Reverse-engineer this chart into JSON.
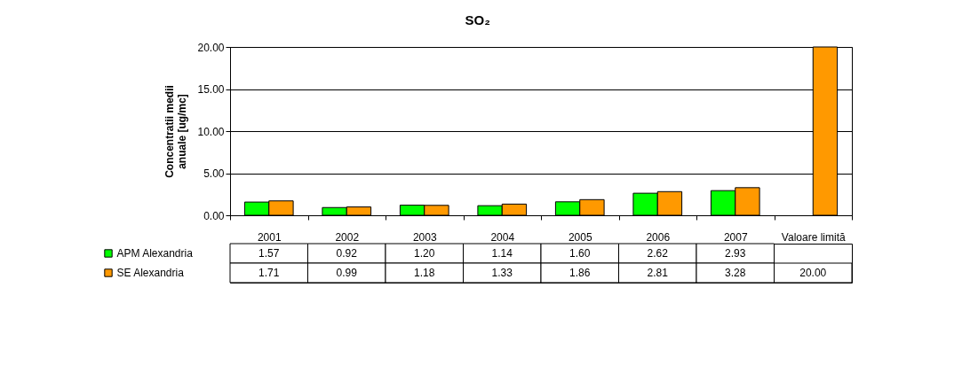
{
  "chart_data": {
    "type": "bar",
    "title": "SO₂",
    "ylabel": "Concentratii medii anuale [ug/mc]",
    "categories": [
      "2001",
      "2002",
      "2003",
      "2004",
      "2005",
      "2006",
      "2007",
      "Valoare limită"
    ],
    "series": [
      {
        "name": "APM Alexandria",
        "color": "#00ff00",
        "values": [
          1.57,
          0.92,
          1.2,
          1.14,
          1.6,
          2.62,
          2.93,
          null
        ],
        "value_labels": [
          "1.57",
          "0.92",
          "1.20",
          "1.14",
          "1.60",
          "2.62",
          "2.93",
          null
        ]
      },
      {
        "name": "SE Alexandria",
        "color": "#ff9900",
        "values": [
          1.71,
          0.99,
          1.18,
          1.33,
          1.86,
          2.81,
          3.28,
          20.0
        ],
        "value_labels": [
          "1.71",
          "0.99",
          "1.18",
          "1.33",
          "1.86",
          "2.81",
          "3.28",
          "20.00"
        ]
      }
    ],
    "ylim": [
      0,
      20
    ],
    "yticks": [
      {
        "value": 0,
        "label": "0.00"
      },
      {
        "value": 5,
        "label": "5.00"
      },
      {
        "value": 10,
        "label": "10.00"
      },
      {
        "value": 15,
        "label": "15.00"
      },
      {
        "value": 20,
        "label": "20.00"
      }
    ],
    "grid": "y",
    "legend": "bottom left"
  }
}
